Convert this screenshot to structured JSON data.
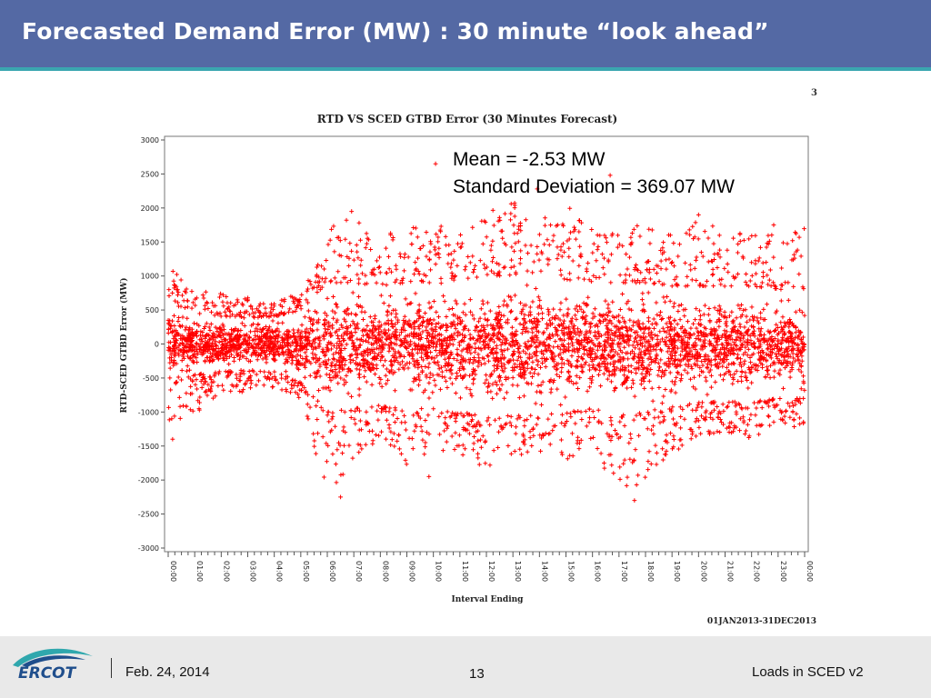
{
  "slide": {
    "title": "Forecasted Demand Error (MW) : 30 minute “look ahead”",
    "page_mark": "3",
    "stats": {
      "mean": "Mean = -2.53 MW",
      "std": "Standard Deviation = 369.07 MW"
    }
  },
  "footer": {
    "logo_text": "ERCOT",
    "date": "Feb. 24, 2014",
    "page_number": "13",
    "right_text": "Loads in SCED v2"
  },
  "colors": {
    "header": "#5469a4",
    "header_rule": "#3aa6b0",
    "marker": "#ff0000",
    "logo_blue": "#1f4e8c",
    "logo_teal": "#2fa7ad"
  },
  "chart_data": {
    "type": "scatter",
    "title": "RTD VS SCED GTBD Error (30 Minutes Forecast)",
    "xlabel": "Interval Ending",
    "ylabel": "RTD-SCED GTBD Error (MW)",
    "date_range": "01JAN2013-31DEC2013",
    "marker": "+",
    "marker_color": "#ff0000",
    "grid": false,
    "ylim": [
      -3000,
      3000
    ],
    "yticks": [
      3000,
      2500,
      2000,
      1500,
      1000,
      500,
      0,
      -500,
      -1000,
      -1500,
      -2000,
      -2500,
      -3000
    ],
    "xlim": [
      "00:00",
      "24:00"
    ],
    "xtick_labels": [
      "00:00",
      "01:00",
      "02:00",
      "03:00",
      "04:00",
      "05:00",
      "06:00",
      "07:00",
      "08:00",
      "09:00",
      "10:00",
      "11:00",
      "12:00",
      "13:00",
      "14:00",
      "15:00",
      "16:00",
      "17:00",
      "18:00",
      "19:00",
      "20:00",
      "21:00",
      "22:00",
      "23:00",
      "00:00"
    ],
    "envelope_by_hour": {
      "hour": [
        0,
        1,
        2,
        3,
        4,
        5,
        6,
        7,
        8,
        9,
        10,
        11,
        12,
        13,
        14,
        15,
        16,
        17,
        18,
        19,
        20,
        21,
        22,
        23,
        24
      ],
      "upper": [
        1150,
        800,
        750,
        700,
        600,
        800,
        1700,
        1900,
        1600,
        1700,
        1800,
        1700,
        1900,
        2200,
        2100,
        2050,
        1800,
        1700,
        1800,
        1600,
        1900,
        1600,
        1700,
        1700,
        1700
      ],
      "lower": [
        -1400,
        -1050,
        -750,
        -700,
        -650,
        -800,
        -2250,
        -1700,
        -1400,
        -1800,
        -1600,
        -1700,
        -1800,
        -1700,
        -1600,
        -1700,
        -1500,
        -2300,
        -2100,
        -1600,
        -1400,
        -1300,
        -1400,
        -1300,
        -1200
      ],
      "core_upper": [
        600,
        450,
        400,
        380,
        400,
        500,
        900,
        900,
        850,
        900,
        900,
        950,
        1000,
        1000,
        1000,
        950,
        900,
        900,
        900,
        850,
        850,
        850,
        850,
        800,
        800
      ],
      "core_lower": [
        -600,
        -450,
        -400,
        -380,
        -400,
        -550,
        -1000,
        -950,
        -900,
        -950,
        -950,
        -1000,
        -1050,
        -1050,
        -1050,
        -1000,
        -950,
        -1050,
        -1000,
        -900,
        -850,
        -850,
        -850,
        -800,
        -800
      ]
    },
    "outliers": [
      {
        "x": "10:05",
        "y": 2650
      },
      {
        "x": "16:40",
        "y": 2480
      },
      {
        "x": "13:55",
        "y": 2280
      },
      {
        "x": "06:55",
        "y": 1950
      },
      {
        "x": "06:30",
        "y": -2250
      },
      {
        "x": "17:35",
        "y": -2300
      },
      {
        "x": "09:50",
        "y": -1950
      },
      {
        "x": "20:00",
        "y": 1900
      },
      {
        "x": "22:50",
        "y": 1750
      },
      {
        "x": "00:10",
        "y": -1400
      }
    ]
  }
}
